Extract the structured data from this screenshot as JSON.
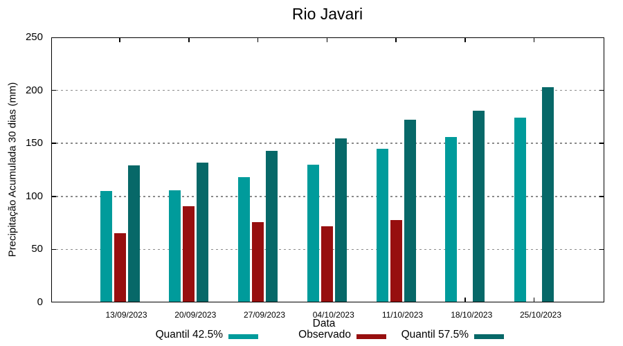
{
  "chart_data": {
    "type": "bar",
    "title": "Rio Javari",
    "xlabel": "Data",
    "ylabel": "Precipitação Acumulada 30 dias (mm)",
    "ylim": [
      0,
      250
    ],
    "yticks": [
      0,
      50,
      100,
      150,
      200,
      250
    ],
    "grid": {
      "horizontal": true,
      "style": "dotted",
      "color": "#8a8a8a",
      "at": [
        50,
        100,
        150,
        200
      ]
    },
    "legend_position": "bottom-center",
    "categories": [
      "13/09/2023",
      "20/09/2023",
      "27/09/2023",
      "04/10/2023",
      "11/10/2023",
      "18/10/2023",
      "25/10/2023"
    ],
    "series": [
      {
        "name": "Quantil 42.5%",
        "color": "#009B9B",
        "values": [
          105,
          106,
          118,
          130,
          145,
          156,
          174
        ]
      },
      {
        "name": "Observado",
        "color": "#970F0F",
        "values": [
          65,
          91,
          76,
          72,
          78,
          null,
          null
        ]
      },
      {
        "name": "Quantil 57.5%",
        "color": "#076868",
        "values": [
          129,
          132,
          143,
          155,
          172,
          181,
          203
        ]
      }
    ],
    "colors": {
      "axis": "#000000",
      "background": "#ffffff",
      "text": "#000000"
    }
  }
}
